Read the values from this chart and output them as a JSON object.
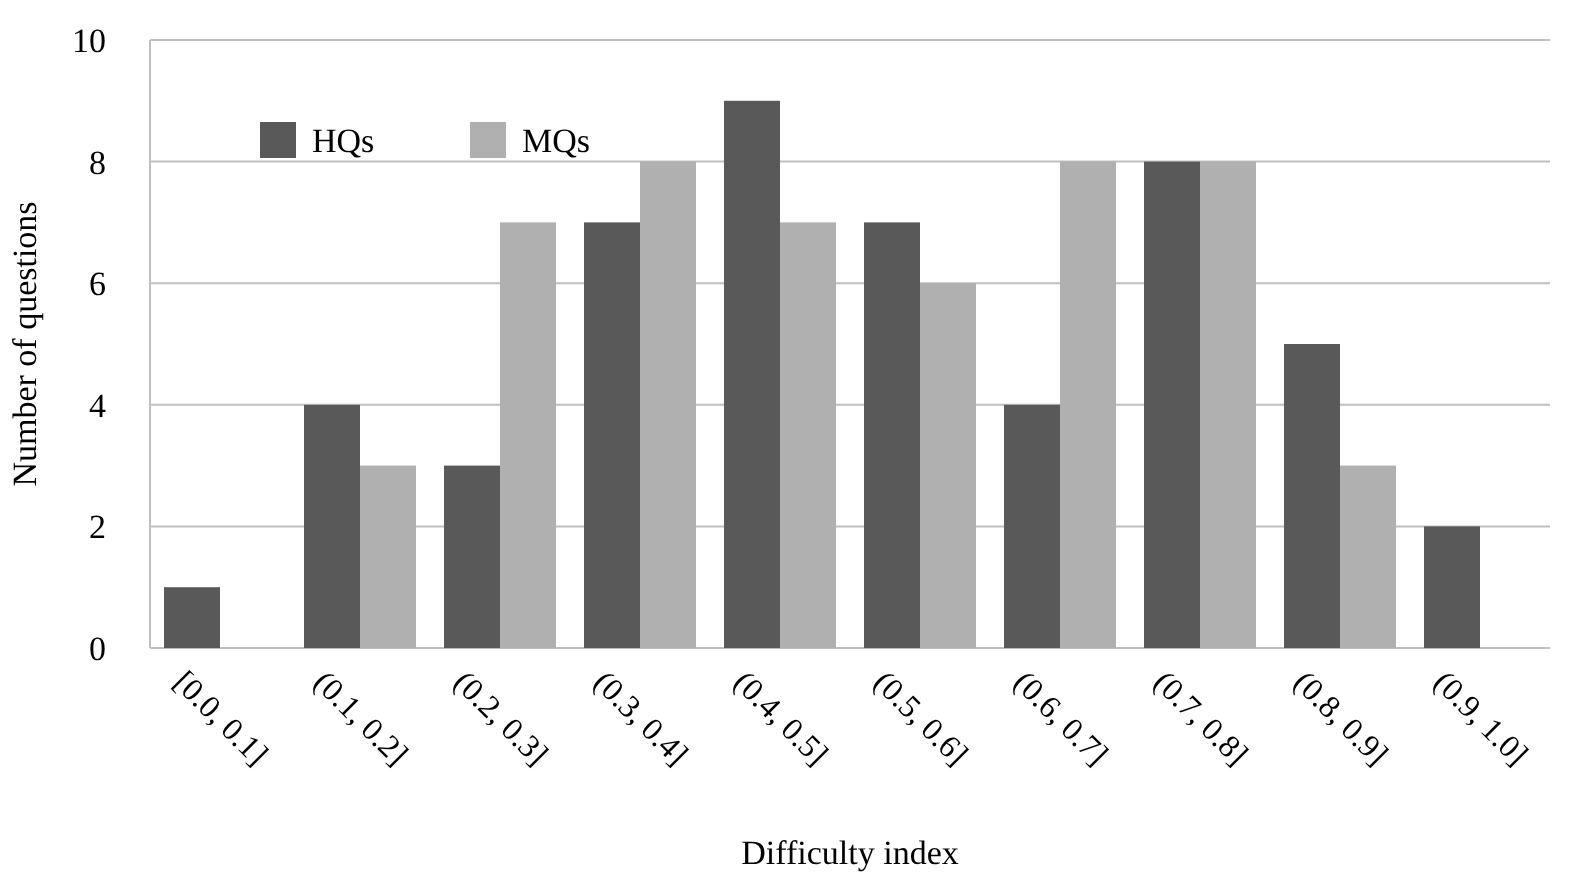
{
  "chart_data": {
    "type": "bar",
    "xlabel": "Difficulty index",
    "ylabel": "Number of questions",
    "categories": [
      "[0.0, 0.1]",
      "(0.1, 0.2]",
      "(0.2, 0.3]",
      "(0.3, 0.4]",
      "(0.4, 0.5]",
      "(0.5, 0.6]",
      "(0.6, 0.7]",
      "(0.7, 0.8]",
      "(0.8, 0.9]",
      "(0.9, 1.0]"
    ],
    "series": [
      {
        "name": "HQs",
        "color": "#595959",
        "values": [
          1,
          4,
          3,
          7,
          9,
          7,
          4,
          8,
          5,
          2
        ]
      },
      {
        "name": "MQs",
        "color": "#b0b0b0",
        "values": [
          0,
          3,
          7,
          8,
          7,
          6,
          8,
          8,
          3,
          0
        ]
      }
    ],
    "ylim": [
      0,
      10
    ],
    "yticks": [
      0,
      2,
      4,
      6,
      8,
      10
    ],
    "grid": "y",
    "legend": "top left"
  }
}
